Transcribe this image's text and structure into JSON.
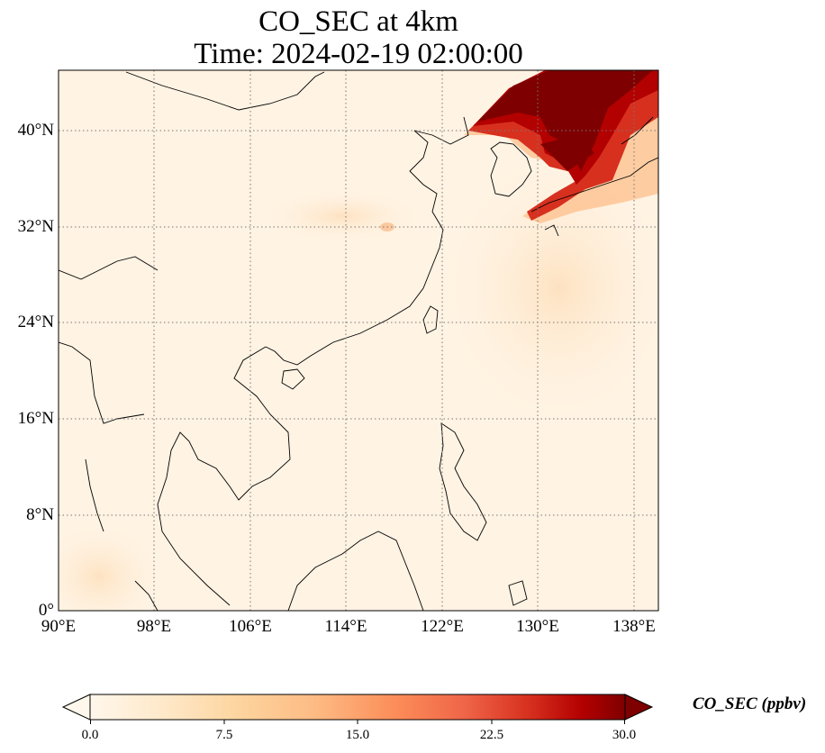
{
  "title_line1": "CO_SEC at 4km",
  "title_line2": "Time: 2024-02-19 02:00:00",
  "map": {
    "lon_range": [
      90,
      140
    ],
    "lat_range": [
      0,
      45
    ],
    "gridlines": "dotted",
    "x_ticks": [
      "90°E",
      "98°E",
      "106°E",
      "114°E",
      "122°E",
      "130°E",
      "138°E"
    ],
    "y_ticks": [
      "40°N",
      "32°N",
      "24°N",
      "16°N",
      "8°N",
      "0°"
    ]
  },
  "colorbar": {
    "title": "CO_SEC (ppbv)",
    "min": 0.0,
    "max": 30.0,
    "extend": "both",
    "colormap": "OrRd",
    "ticks": [
      "0.0",
      "7.5",
      "15.0",
      "22.5",
      "30.0"
    ],
    "colors": [
      "#fff7ec",
      "#fee8c8",
      "#fdd49e",
      "#fdbb84",
      "#fc8d59",
      "#ef6548",
      "#d7301f",
      "#b30000",
      "#7f0000"
    ]
  },
  "features": {
    "high_concentration_region": "Korea, Japan and northeast coast",
    "plume_colors": [
      "#7f0000",
      "#b30000",
      "#d7301f"
    ]
  }
}
